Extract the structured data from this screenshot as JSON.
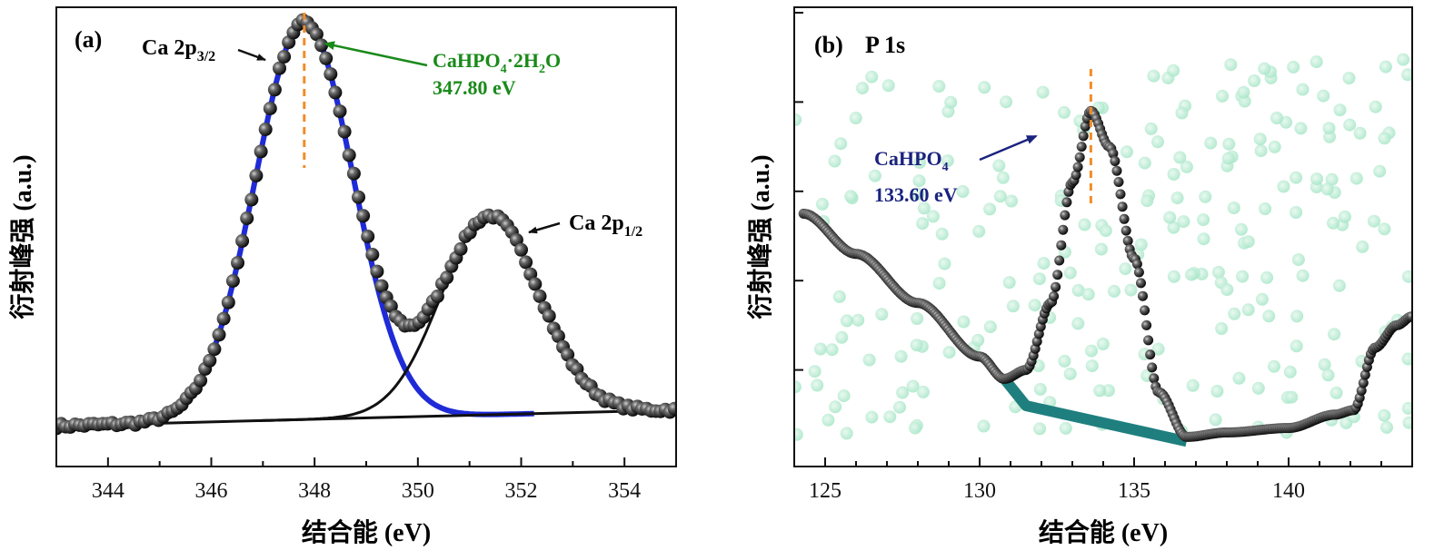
{
  "chart_data": [
    {
      "type": "scatter",
      "panel_label": "(a)",
      "xlabel": "结合能 (eV)",
      "ylabel": "衍射峰强 (a.u.)",
      "xlim": [
        343,
        355
      ],
      "x_ticks": [
        344,
        346,
        348,
        350,
        352,
        354
      ],
      "ylim": [
        0,
        1.05
      ],
      "y_ticks": [],
      "peaks": [
        {
          "name": "Ca 2p3/2",
          "center_ev": 347.8,
          "height": 1.0,
          "sigma_ev": 0.95,
          "fit_color": "#1f2bd6"
        },
        {
          "name": "Ca 2p1/2",
          "center_ev": 351.4,
          "height": 0.5,
          "sigma_ev": 0.95,
          "fit_color": "#111111"
        }
      ],
      "background": {
        "start": 0.02,
        "end": 0.06
      },
      "annotations": {
        "peak1_label": "Ca 2p",
        "peak1_sub": "3/2",
        "peak2_label": "Ca 2p",
        "peak2_sub": "1/2",
        "compound_line1_a": "CaHPO",
        "compound_line1_sub1": "4",
        "compound_line1_b": "·2H",
        "compound_line1_sub2": "2",
        "compound_line1_c": "O",
        "compound_line2": "347.80 eV",
        "compound_color": "#1a8a1a",
        "marker_line_ev": 347.8,
        "marker_color": "#f28c28"
      },
      "series": [
        {
          "name": "measured",
          "marker": "sphere",
          "color": "#1a1a1a"
        },
        {
          "name": "Ca 2p3/2 fit",
          "line": "solid",
          "color": "#1f2bd6"
        },
        {
          "name": "Ca 2p1/2 fit",
          "line": "solid",
          "color": "#111111"
        }
      ]
    },
    {
      "type": "scatter",
      "panel_label": "(b)",
      "title": "P 1s",
      "xlabel": "结合能 (eV)",
      "ylabel": "衍射峰强 (a.u.)",
      "xlim": [
        124,
        144
      ],
      "x_ticks": [
        125,
        130,
        135,
        140
      ],
      "ylim": [
        0,
        1.05
      ],
      "y_ticks": [
        0.2,
        0.4,
        0.6,
        0.8,
        1.0
      ],
      "measured_curve": [
        [
          124.3,
          0.55
        ],
        [
          126,
          0.46
        ],
        [
          128,
          0.35
        ],
        [
          130,
          0.23
        ],
        [
          130.8,
          0.18
        ],
        [
          131.5,
          0.2
        ],
        [
          132.3,
          0.35
        ],
        [
          133,
          0.62
        ],
        [
          133.6,
          0.78
        ],
        [
          134.2,
          0.7
        ],
        [
          135,
          0.45
        ],
        [
          135.8,
          0.15
        ],
        [
          136.7,
          0.05
        ],
        [
          138,
          0.06
        ],
        [
          140,
          0.07
        ],
        [
          141.5,
          0.1
        ],
        [
          142.1,
          0.11
        ],
        [
          142.8,
          0.25
        ],
        [
          143.5,
          0.3
        ],
        [
          144,
          0.32
        ]
      ],
      "baseline": [
        [
          130.8,
          0.18
        ],
        [
          131.5,
          0.12
        ],
        [
          136.7,
          0.04
        ]
      ],
      "noise_color": "#a8e6c8",
      "baseline_color": "#1f7f7f",
      "annotations": {
        "compound_a": "CaHPO",
        "compound_sub": "4",
        "compound_line2": "133.60 eV",
        "compound_color": "#1a237e",
        "marker_line_ev": 133.6,
        "marker_color": "#f28c28"
      }
    }
  ]
}
